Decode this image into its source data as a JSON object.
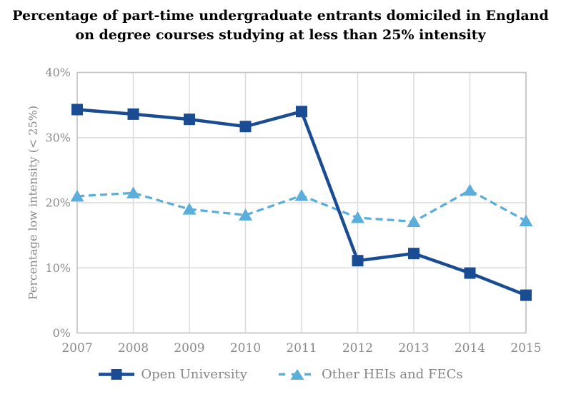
{
  "title": {
    "line1": "Percentage of part-time undergraduate entrants domiciled in England",
    "line2": "on degree courses studying at less than 25% intensity"
  },
  "colors": {
    "open_university": "#1A4C94",
    "other_heis": "#59AEDC",
    "grid": "#DBDBDB",
    "axis": "#C2C2C2",
    "tick_text": "#8A8A8A",
    "title_text": "#000000"
  },
  "chart_data": {
    "type": "line",
    "title": "Percentage of part-time undergraduate entrants domiciled in England on degree courses studying at less than 25% intensity",
    "x": [
      2007,
      2008,
      2009,
      2010,
      2011,
      2012,
      2013,
      2014,
      2015
    ],
    "series": [
      {
        "name": "Open University",
        "color": "#1A4C94",
        "marker": "square",
        "line_style": "solid",
        "values": [
          34.3,
          33.6,
          32.8,
          31.7,
          34.0,
          11.1,
          12.2,
          9.2,
          5.8
        ]
      },
      {
        "name": "Other HEIs and FECs",
        "color": "#59AEDC",
        "marker": "triangle",
        "line_style": "dashed",
        "values": [
          21.0,
          21.5,
          19.0,
          18.1,
          21.1,
          17.7,
          17.1,
          21.9,
          17.2
        ]
      }
    ],
    "xlabel": "",
    "ylabel": "Percentage low intensity (< 25%)",
    "ylim": [
      0,
      40
    ],
    "ytick_step": 10,
    "ytick_suffix": "%",
    "grid": true,
    "legend_position": "bottom"
  }
}
